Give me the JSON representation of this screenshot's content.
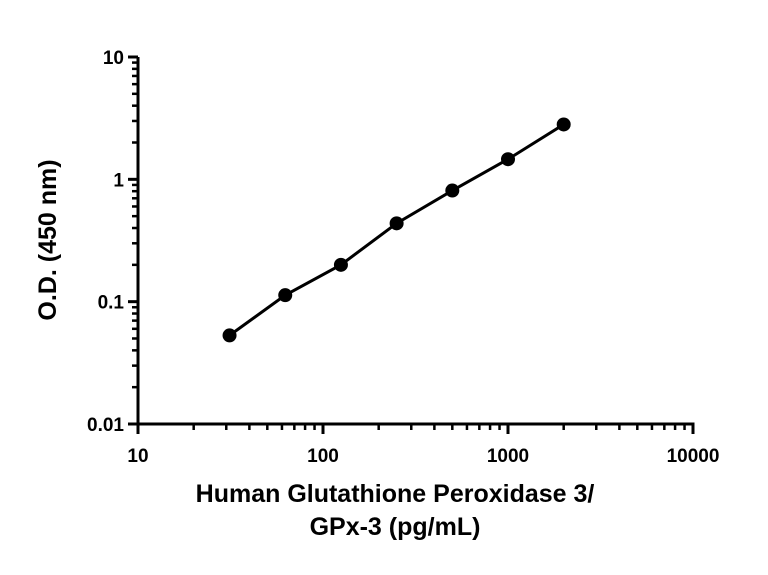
{
  "chart_data": {
    "type": "scatter",
    "title": "",
    "xlabel_line1": "Human Glutathione Peroxidase 3/",
    "xlabel_line2": "GPx-3 (pg/mL)",
    "ylabel": "O.D. (450 nm)",
    "x_scale": "log",
    "y_scale": "log",
    "xlim": [
      10,
      10000
    ],
    "ylim": [
      0.01,
      10
    ],
    "x_tick_labels": [
      "10",
      "100",
      "1000",
      "10000"
    ],
    "y_tick_labels": [
      "0.01",
      "0.1",
      "1",
      "10"
    ],
    "grid": false,
    "fit_line": true,
    "series": [
      {
        "x": [
          31.25,
          62.5,
          125,
          250,
          500,
          1000,
          2000
        ],
        "y": [
          0.053,
          0.113,
          0.2,
          0.437,
          0.81,
          1.46,
          2.81
        ],
        "color": "#000000"
      }
    ]
  }
}
